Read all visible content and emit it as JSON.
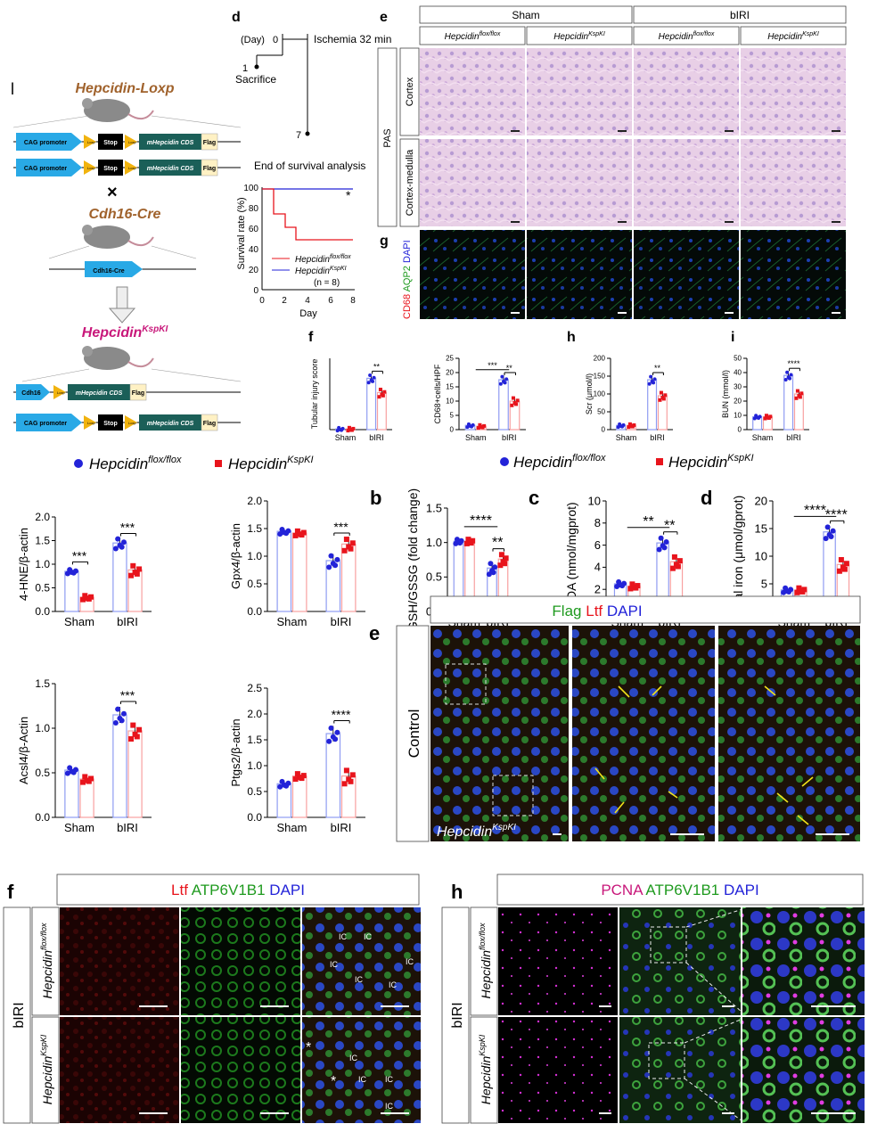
{
  "colors": {
    "blue": "#2323d8",
    "red": "#e8141c",
    "barBlue": "#8f9cf2",
    "barRed": "#f8a0a0",
    "brown": "#a0622c",
    "magenta": "#c8177a",
    "cag": "#29a9e6",
    "stop": "#000000",
    "cds": "#1b5f58",
    "flag": "#fff1c4",
    "loxp": "#f1b30e"
  },
  "genetics": {
    "panel_letter": "l",
    "parent1": "Hepcidin-Loxp",
    "parent2": "Cdh16-Cre",
    "offspring_base": "Hepcidin",
    "offspring_sup": "KspKI",
    "cross": "×",
    "construct": {
      "promoter": "CAG promoter",
      "loxp": "Loxp",
      "stop": "Stop",
      "cds": "mHepcidin CDS",
      "flag": "Flag",
      "cre": "Cdh16-Cre",
      "cdh16": "Cdh16"
    }
  },
  "timeline": {
    "letter": "d",
    "day_label": "(Day)",
    "t0": "0",
    "ischemia": "Ischemia 32 min",
    "t1": "1",
    "sacrifice": "Sacrifice",
    "t7": "7",
    "end": "End of survival analysis"
  },
  "survival": {
    "ylabel": "Survival rate (%)",
    "xlabel": "Day",
    "star": "*",
    "legend1_base": "Hepcidin",
    "legend1_sup": "flox/flox",
    "legend2_base": "Hepcidin",
    "legend2_sup": "KspKI",
    "n": "(n = 8)"
  },
  "histo": {
    "letter_e": "e",
    "letter_g": "g",
    "groups": [
      "Sham",
      "bIRI"
    ],
    "genotype_base": "Hepcidin",
    "sup1": "flox/flox",
    "sup2": "KspKI",
    "pas": "PAS",
    "row1": "Cortex",
    "row2": "Cortex-medulla",
    "if_cd68": "CD68",
    "if_aqp2": "AQP2",
    "if_dapi": "DAPI"
  },
  "legend_top": {
    "blue_base": "Hepcidin",
    "blue_sup": "flox/flox",
    "red_base": "Hepcidin",
    "red_sup": "KspKI"
  },
  "legend_mid": {
    "blue_base": "Hepcidin",
    "blue_sup": "flox/flox",
    "red_base": "Hepcidin",
    "red_sup": "KspKI"
  },
  "panel_f_letter": "f",
  "panel_h_letter": "h",
  "panel_i_letter": "i",
  "panel_b_letter": "b",
  "panel_c_letter": "c",
  "panel_d_letter": "d",
  "panel_e2": {
    "letter": "e",
    "flag": "Flag",
    "ltf": "Ltf",
    "dapi": "DAPI",
    "control": "Control",
    "base": "Hepcidin",
    "sup": "KspKI"
  },
  "panel_f2": {
    "letter": "f",
    "ltf": "Ltf",
    "atp": "ATP6V1B1",
    "dapi": "DAPI",
    "birI": "bIRI",
    "base": "Hepcidin",
    "sup1": "flox/flox",
    "sup2": "KspKI",
    "ic": "IC",
    "star": "*"
  },
  "panel_h2": {
    "letter": "h",
    "pcna": "PCNA",
    "atp": "ATP6V1B1",
    "dapi": "DAPI",
    "birI": "bIRI",
    "base": "Hepcidin",
    "sup1": "flox/flox",
    "sup2": "KspKI"
  },
  "chart_data": [
    {
      "id": "tubular",
      "type": "bar",
      "ylabel": "Tubular injury score",
      "categories": [
        "Sham",
        "bIRI"
      ],
      "ylim": [
        0,
        5
      ],
      "yticks": [],
      "series": [
        {
          "values": [
            0.05,
            3.6
          ]
        },
        {
          "values": [
            0.05,
            2.6
          ]
        }
      ],
      "sig": [
        {
          "text": "**",
          "between": "bIRI"
        }
      ]
    },
    {
      "id": "cd68",
      "type": "bar",
      "ylabel": "CD68+cells/HPF",
      "categories": [
        "Sham",
        "bIRI"
      ],
      "ylim": [
        0,
        25
      ],
      "yticks": [
        "0",
        "5",
        "10",
        "15",
        "20",
        "25"
      ],
      "series": [
        {
          "values": [
            1.5,
            17.5
          ]
        },
        {
          "values": [
            1.2,
            10
          ]
        }
      ],
      "sig": [
        {
          "text": "***",
          "between": "sham-bIRI"
        },
        {
          "text": "**",
          "between": "bIRI"
        }
      ]
    },
    {
      "id": "scr",
      "type": "bar",
      "letter": "h",
      "ylabel": "Scr (μmol/l)",
      "categories": [
        "Sham",
        "bIRI"
      ],
      "ylim": [
        0,
        200
      ],
      "yticks": [
        "0",
        "50",
        "100",
        "150",
        "200"
      ],
      "series": [
        {
          "values": [
            12,
            140
          ]
        },
        {
          "values": [
            12,
            95
          ]
        }
      ],
      "sig": [
        {
          "text": "**",
          "between": "bIRI"
        }
      ]
    },
    {
      "id": "bun",
      "type": "bar",
      "letter": "i",
      "ylabel": "BUN (mmol/l)",
      "categories": [
        "Sham",
        "bIRI"
      ],
      "ylim": [
        0,
        50
      ],
      "yticks": [
        "0",
        "10",
        "20",
        "30",
        "40",
        "50"
      ],
      "series": [
        {
          "values": [
            9,
            38
          ]
        },
        {
          "values": [
            9,
            25
          ]
        }
      ],
      "sig": [
        {
          "text": "****",
          "between": "bIRI"
        }
      ]
    },
    {
      "id": "hne",
      "type": "bar",
      "ylabel": "4-HNE/β-actin",
      "categories": [
        "Sham",
        "bIRI"
      ],
      "ylim": [
        0,
        2.0
      ],
      "yticks": [
        "0.0",
        "0.5",
        "1.0",
        "1.5",
        "2.0"
      ],
      "series": [
        {
          "values": [
            0.85,
            1.45
          ]
        },
        {
          "values": [
            0.3,
            0.88
          ]
        }
      ],
      "sig": [
        {
          "text": "***",
          "between": "Sham"
        },
        {
          "text": "***",
          "between": "bIRI"
        }
      ]
    },
    {
      "id": "gpx4",
      "type": "bar",
      "ylabel": "Gpx4/β-actin",
      "categories": [
        "Sham",
        "bIRI"
      ],
      "ylim": [
        0,
        2.0
      ],
      "yticks": [
        "0.0",
        "0.5",
        "1.0",
        "1.5",
        "2.0"
      ],
      "series": [
        {
          "values": [
            1.45,
            0.92
          ]
        },
        {
          "values": [
            1.42,
            1.22
          ]
        }
      ],
      "sig": [
        {
          "text": "***",
          "between": "bIRI"
        }
      ]
    },
    {
      "id": "gsh",
      "type": "bar",
      "ylabel": "GSH/GSSG (fold change)",
      "categories": [
        "Sham",
        "bIRI"
      ],
      "ylim": [
        0,
        1.5
      ],
      "yticks": [
        "0.0",
        "0.5",
        "1.0",
        "1.5"
      ],
      "series": [
        {
          "values": [
            1.02,
            0.63
          ]
        },
        {
          "values": [
            1.02,
            0.76
          ]
        }
      ],
      "sig": [
        {
          "text": "****",
          "between": "sham-bIRI"
        },
        {
          "text": "**",
          "between": "bIRI"
        }
      ]
    },
    {
      "id": "mda",
      "type": "bar",
      "ylabel": "MDA (nmol/mgprot)",
      "categories": [
        "Sham",
        "bIRI"
      ],
      "ylim": [
        0,
        10
      ],
      "yticks": [
        "0",
        "2",
        "4",
        "6",
        "8",
        "10"
      ],
      "series": [
        {
          "values": [
            2.5,
            6.2
          ]
        },
        {
          "values": [
            2.3,
            4.5
          ]
        }
      ],
      "sig": [
        {
          "text": "**",
          "between": "sham-bIRI"
        },
        {
          "text": "**",
          "between": "bIRI"
        }
      ]
    },
    {
      "id": "iron",
      "type": "bar",
      "ylabel": "Total iron (μmol/gprot)",
      "categories": [
        "Sham",
        "bIRI"
      ],
      "ylim": [
        0,
        20
      ],
      "yticks": [
        "0",
        "5",
        "10",
        "15",
        "20"
      ],
      "series": [
        {
          "values": [
            3.9,
            14.4
          ]
        },
        {
          "values": [
            3.9,
            8.5
          ]
        }
      ],
      "sig": [
        {
          "text": "****",
          "between": "sham-bIRI"
        },
        {
          "text": "****",
          "between": "bIRI"
        }
      ]
    },
    {
      "id": "acsl4",
      "type": "bar",
      "ylabel": "Acsl4/β-Actin",
      "categories": [
        "Sham",
        "bIRI"
      ],
      "ylim": [
        0,
        1.5
      ],
      "yticks": [
        "0.0",
        "0.5",
        "1.0",
        "1.5"
      ],
      "series": [
        {
          "values": [
            0.53,
            1.15
          ]
        },
        {
          "values": [
            0.43,
            0.97
          ]
        }
      ],
      "sig": [
        {
          "text": "***",
          "between": "bIRI"
        }
      ]
    },
    {
      "id": "ptgs2",
      "type": "bar",
      "ylabel": "Ptgs2/β-actin",
      "categories": [
        "Sham",
        "bIRI"
      ],
      "ylim": [
        0,
        2.5
      ],
      "yticks": [
        "0.0",
        "0.5",
        "1.0",
        "1.5",
        "2.0",
        "2.5"
      ],
      "series": [
        {
          "values": [
            0.65,
            1.62
          ]
        },
        {
          "values": [
            0.8,
            0.8
          ]
        }
      ],
      "sig": [
        {
          "text": "****",
          "between": "bIRI"
        }
      ]
    }
  ]
}
